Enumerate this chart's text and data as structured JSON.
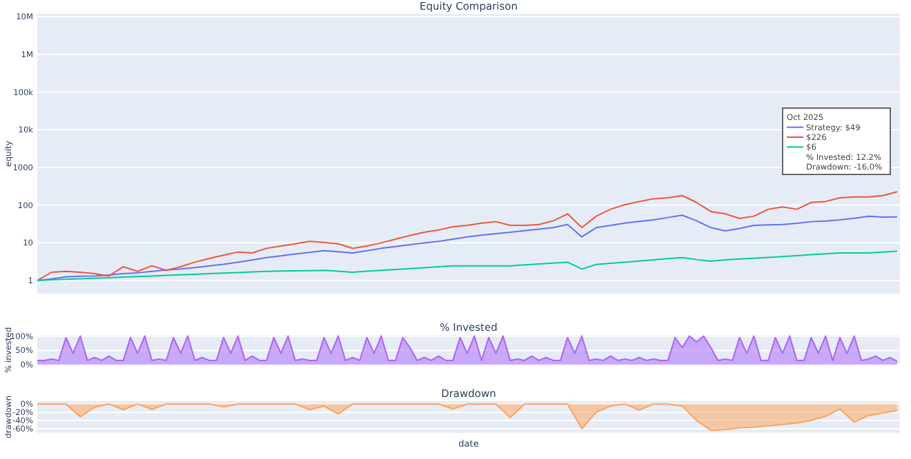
{
  "chart_data": [
    {
      "type": "line",
      "title": "Equity Comparison",
      "ylabel": "equity",
      "log": "y",
      "grid": "y",
      "legend": "right",
      "legend_title": "Oct 2025",
      "marker": "none",
      "line_style": "solid",
      "tick_labels": "y",
      "categories": [
        null,
        null,
        null,
        null,
        null,
        null,
        null,
        null,
        null,
        null,
        null,
        null,
        null,
        null,
        null,
        null,
        null,
        null,
        null,
        null,
        null,
        null,
        null,
        null,
        null,
        null,
        null,
        null,
        null,
        null,
        null,
        null,
        null,
        null,
        null,
        null,
        null,
        null,
        null,
        null,
        null,
        null,
        null,
        null,
        null,
        null,
        null,
        null,
        null,
        null,
        null,
        null,
        null,
        null,
        null,
        null,
        null,
        null,
        null,
        null,
        null
      ],
      "ylim": [
        0.45,
        12000000
      ],
      "yticks": [
        1,
        10,
        100,
        1000,
        {
          "value": 10000,
          "label": "10k"
        },
        {
          "value": 100000,
          "label": "100k"
        },
        {
          "value": 1000000,
          "label": "1M"
        },
        {
          "value": 10000000,
          "label": "10M"
        }
      ],
      "annotations": [
        "% Invested: 12.2%",
        "Drawdown: -16.0%"
      ],
      "series": [
        {
          "name": "Strategy: $49",
          "color": "#636efa",
          "values": [
            1,
            1.1,
            1.25,
            1.3,
            1.32,
            1.4,
            1.52,
            1.6,
            1.75,
            1.9,
            2.02,
            2.2,
            2.46,
            2.7,
            3.07,
            3.5,
            4.07,
            4.5,
            5.09,
            5.6,
            6.2,
            5.8,
            5.4,
            6.2,
            7.14,
            8,
            8.93,
            9.9,
            10.9,
            12.5,
            14.4,
            16,
            17.5,
            19.1,
            21,
            23,
            25.3,
            30.7,
            14.4,
            25.3,
            29,
            33.5,
            37,
            40.7,
            47,
            54.2,
            38.5,
            25.3,
            20.7,
            24,
            29.1,
            30,
            30.7,
            33,
            36.5,
            38,
            40.7,
            45,
            51.1,
            48,
            49
          ]
        },
        {
          "name": "$226",
          "color": "#ef553b",
          "values": [
            1,
            1.66,
            1.75,
            1.66,
            1.52,
            1.32,
            2.32,
            1.75,
            2.46,
            1.86,
            2.32,
            3.07,
            3.85,
            4.69,
            5.72,
            5.4,
            7.14,
            8.2,
            9.44,
            10.9,
            10.3,
            9.44,
            7.14,
            8.2,
            10,
            12.5,
            15.7,
            19.1,
            22,
            26.7,
            29.1,
            33.5,
            36.5,
            29.1,
            29.1,
            30.7,
            38.5,
            58.8,
            25.3,
            51.1,
            77.9,
            103,
            125,
            148,
            157,
            180,
            118,
            67.7,
            58.8,
            44.4,
            51.1,
            77.9,
            89.7,
            77.9,
            118,
            125,
            157,
            166,
            166,
            180,
            226
          ]
        },
        {
          "name": "$6",
          "color": "#00cc96",
          "values": [
            1,
            1.04,
            1.08,
            1.11,
            1.15,
            1.19,
            1.23,
            1.28,
            1.32,
            1.37,
            1.42,
            1.47,
            1.52,
            1.57,
            1.63,
            1.69,
            1.75,
            1.78,
            1.8,
            1.83,
            1.86,
            1.76,
            1.66,
            1.76,
            1.86,
            1.96,
            2.07,
            2.19,
            2.32,
            2.46,
            2.46,
            2.46,
            2.46,
            2.46,
            2.6,
            2.75,
            2.9,
            3.07,
            2.02,
            2.67,
            2.86,
            3.06,
            3.3,
            3.54,
            3.8,
            4.07,
            3.6,
            3.25,
            3.54,
            3.72,
            3.9,
            4.1,
            4.31,
            4.57,
            4.84,
            5.1,
            5.4,
            5.4,
            5.4,
            5.7,
            6
          ]
        }
      ]
    },
    {
      "type": "area",
      "title": "% Invested",
      "ylabel": "% invested",
      "grid": "y",
      "tick_labels": "y",
      "categories": [
        null,
        null,
        null,
        null,
        null,
        null,
        null,
        null,
        null,
        null,
        null,
        null,
        null,
        null,
        null,
        null,
        null,
        null,
        null,
        null,
        null,
        null,
        null,
        null,
        null,
        null,
        null,
        null,
        null,
        null,
        null,
        null,
        null,
        null,
        null,
        null,
        null,
        null,
        null,
        null,
        null,
        null,
        null,
        null,
        null,
        null,
        null,
        null,
        null,
        null,
        null,
        null,
        null,
        null,
        null,
        null,
        null,
        null,
        null,
        null,
        null,
        null,
        null,
        null,
        null,
        null,
        null,
        null,
        null,
        null,
        null,
        null,
        null,
        null,
        null,
        null,
        null,
        null,
        null,
        null,
        null,
        null,
        null,
        null,
        null,
        null,
        null,
        null,
        null,
        null,
        null,
        null,
        null,
        null,
        null,
        null,
        null,
        null,
        null,
        null,
        null,
        null,
        null,
        null,
        null,
        null,
        null,
        null,
        null,
        null,
        null,
        null,
        null,
        null,
        null,
        null,
        null,
        null,
        null,
        null,
        null
      ],
      "ylim": [
        -2,
        104
      ],
      "yticks": [
        {
          "value": 0,
          "label": "0%"
        },
        {
          "value": 50,
          "label": "50%"
        },
        {
          "value": 100,
          "label": "100%"
        }
      ],
      "series": [
        {
          "color": "#ab63fa",
          "values": [
            15,
            15,
            20,
            15,
            95,
            40,
            100,
            15,
            25,
            15,
            30,
            15,
            15,
            95,
            40,
            100,
            15,
            20,
            15,
            95,
            40,
            100,
            15,
            25,
            15,
            15,
            95,
            40,
            100,
            15,
            30,
            15,
            15,
            95,
            40,
            100,
            15,
            20,
            15,
            15,
            95,
            40,
            100,
            15,
            25,
            15,
            95,
            40,
            100,
            15,
            15,
            95,
            60,
            15,
            25,
            15,
            30,
            15,
            15,
            95,
            40,
            100,
            15,
            95,
            40,
            100,
            15,
            20,
            15,
            30,
            15,
            25,
            15,
            15,
            95,
            40,
            100,
            15,
            20,
            15,
            30,
            15,
            20,
            15,
            25,
            15,
            20,
            15,
            15,
            95,
            60,
            100,
            80,
            100,
            60,
            15,
            20,
            15,
            95,
            40,
            100,
            15,
            15,
            95,
            40,
            100,
            15,
            15,
            95,
            40,
            100,
            15,
            95,
            40,
            100,
            15,
            20,
            30,
            15,
            25,
            12.2
          ]
        }
      ]
    },
    {
      "type": "area",
      "title": "Drawdown",
      "ylabel": "drawdown",
      "xlabel": "date",
      "grid": "y",
      "tick_labels": "y",
      "categories": [
        null,
        null,
        null,
        null,
        null,
        null,
        null,
        null,
        null,
        null,
        null,
        null,
        null,
        null,
        null,
        null,
        null,
        null,
        null,
        null,
        null,
        null,
        null,
        null,
        null,
        null,
        null,
        null,
        null,
        null,
        null,
        null,
        null,
        null,
        null,
        null,
        null,
        null,
        null,
        null,
        null,
        null,
        null,
        null,
        null,
        null,
        null,
        null,
        null,
        null,
        null,
        null,
        null,
        null,
        null,
        null,
        null,
        null,
        null,
        null,
        null
      ],
      "ylim": [
        -70,
        7
      ],
      "yticks": [
        {
          "value": 0,
          "label": "0%"
        },
        {
          "value": -20,
          "label": "-20%"
        },
        {
          "value": -40,
          "label": "-40%"
        },
        {
          "value": -60,
          "label": "-60%"
        }
      ],
      "series": [
        {
          "color": "#ffa15a",
          "values": [
            0,
            0,
            0,
            -31,
            -8,
            0,
            -14,
            0,
            -13,
            0,
            0,
            0,
            0,
            -7,
            0,
            0,
            0,
            0,
            0,
            -14,
            -5,
            -24,
            0,
            0,
            0,
            0,
            0,
            0,
            0,
            -12,
            0,
            0,
            0,
            -33,
            0,
            0,
            0,
            0,
            -60,
            -20,
            -5,
            0,
            -15,
            0,
            0,
            -5,
            -40,
            -64,
            -62,
            -58,
            -56,
            -53,
            -50,
            -46,
            -40,
            -30,
            -12,
            -44,
            -28,
            -22,
            -16
          ]
        }
      ]
    }
  ]
}
